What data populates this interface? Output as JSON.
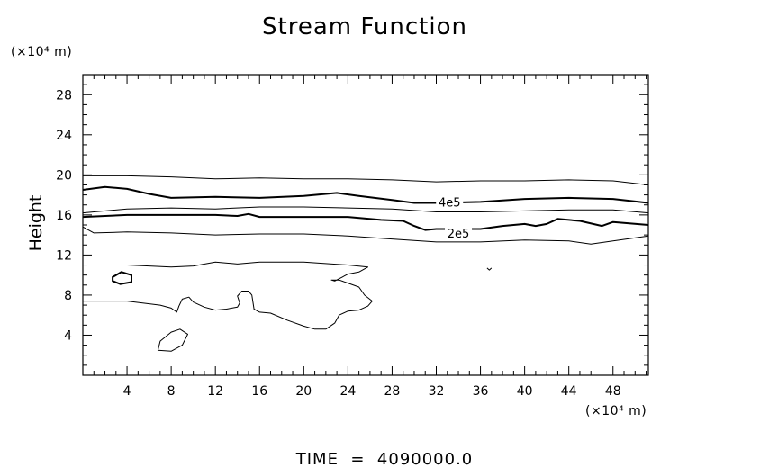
{
  "chart_data": {
    "type": "contour",
    "title": "Stream Function",
    "ylabel": "Height",
    "xlabel": "",
    "y_unit_label": "(×10⁴ m)",
    "x_unit_label": "(×10⁴ m)",
    "footer": "TIME  =  4090000.0",
    "xlim": [
      0,
      51.2
    ],
    "ylim": [
      0,
      30
    ],
    "x_major_ticks": [
      4,
      8,
      12,
      16,
      20,
      24,
      28,
      32,
      36,
      40,
      44,
      48
    ],
    "x_tick_labels": [
      "4",
      "8",
      "12",
      "16",
      "20",
      "24",
      "28",
      "32",
      "36",
      "40",
      "44",
      "48"
    ],
    "y_major_ticks": [
      4,
      8,
      12,
      16,
      20,
      24,
      28
    ],
    "y_tick_labels": [
      "4",
      "8",
      "12",
      "16",
      "20",
      "24",
      "28"
    ],
    "minor_tick_step": 1,
    "contour_labels": [
      {
        "text": "4e5",
        "x": 33.2,
        "y": 17.3
      },
      {
        "text": "2e5",
        "x": 34.0,
        "y": 14.2
      }
    ],
    "contours": [
      {
        "bold": false,
        "points": [
          [
            0,
            19.9
          ],
          [
            4,
            19.9
          ],
          [
            8,
            19.8
          ],
          [
            12,
            19.6
          ],
          [
            16,
            19.7
          ],
          [
            20,
            19.6
          ],
          [
            24,
            19.6
          ],
          [
            28,
            19.5
          ],
          [
            32,
            19.3
          ],
          [
            36,
            19.4
          ],
          [
            40,
            19.4
          ],
          [
            44,
            19.5
          ],
          [
            48,
            19.4
          ],
          [
            51.2,
            19.0
          ]
        ]
      },
      {
        "bold": true,
        "points": [
          [
            0,
            18.5
          ],
          [
            2,
            18.8
          ],
          [
            4,
            18.6
          ],
          [
            6,
            18.1
          ],
          [
            8,
            17.7
          ],
          [
            12,
            17.8
          ],
          [
            16,
            17.7
          ],
          [
            20,
            17.9
          ],
          [
            23,
            18.2
          ],
          [
            25,
            17.9
          ],
          [
            28,
            17.5
          ],
          [
            30,
            17.2
          ],
          [
            32,
            17.2
          ],
          [
            36,
            17.3
          ],
          [
            40,
            17.6
          ],
          [
            44,
            17.7
          ],
          [
            48,
            17.6
          ],
          [
            51.2,
            17.2
          ]
        ]
      },
      {
        "bold": false,
        "points": [
          [
            0,
            16.2
          ],
          [
            4,
            16.6
          ],
          [
            8,
            16.7
          ],
          [
            12,
            16.6
          ],
          [
            16,
            16.8
          ],
          [
            20,
            16.8
          ],
          [
            24,
            16.7
          ],
          [
            28,
            16.6
          ],
          [
            32,
            16.3
          ],
          [
            36,
            16.3
          ],
          [
            40,
            16.4
          ],
          [
            44,
            16.5
          ],
          [
            48,
            16.5
          ],
          [
            51.2,
            16.2
          ]
        ]
      },
      {
        "bold": true,
        "points": [
          [
            0,
            15.8
          ],
          [
            4,
            16.0
          ],
          [
            8,
            16.0
          ],
          [
            12,
            16.0
          ],
          [
            14,
            15.9
          ],
          [
            15,
            16.1
          ],
          [
            16,
            15.8
          ],
          [
            20,
            15.8
          ],
          [
            24,
            15.8
          ],
          [
            27,
            15.5
          ],
          [
            29,
            15.4
          ],
          [
            30,
            14.9
          ],
          [
            31,
            14.5
          ],
          [
            32,
            14.6
          ],
          [
            36,
            14.6
          ],
          [
            38,
            14.9
          ],
          [
            40,
            15.1
          ],
          [
            41,
            14.9
          ],
          [
            42,
            15.1
          ],
          [
            43,
            15.6
          ],
          [
            45,
            15.4
          ],
          [
            47,
            14.9
          ],
          [
            48,
            15.3
          ],
          [
            51.2,
            15.0
          ]
        ]
      },
      {
        "bold": false,
        "points": [
          [
            0,
            14.8
          ],
          [
            1,
            14.2
          ],
          [
            4,
            14.3
          ],
          [
            8,
            14.2
          ],
          [
            12,
            14.0
          ],
          [
            16,
            14.1
          ],
          [
            20,
            14.1
          ],
          [
            24,
            13.9
          ],
          [
            28,
            13.6
          ],
          [
            32,
            13.3
          ],
          [
            36,
            13.3
          ],
          [
            40,
            13.5
          ],
          [
            44,
            13.4
          ],
          [
            46,
            13.1
          ],
          [
            48,
            13.4
          ],
          [
            51.2,
            13.9
          ]
        ]
      },
      {
        "bold": false,
        "points": [
          [
            0,
            11.0
          ],
          [
            4,
            11.0
          ],
          [
            8,
            10.8
          ],
          [
            10,
            10.9
          ],
          [
            12,
            11.3
          ],
          [
            14,
            11.1
          ],
          [
            16,
            11.3
          ],
          [
            20,
            11.3
          ],
          [
            24,
            11.0
          ],
          [
            25.8,
            10.8
          ],
          [
            25,
            10.3
          ],
          [
            24,
            10.1
          ],
          [
            23.5,
            9.8
          ],
          [
            22.8,
            9.4
          ],
          [
            22.5,
            9.5
          ],
          [
            23.2,
            9.5
          ],
          [
            24,
            9.2
          ],
          [
            25,
            8.8
          ],
          [
            25.5,
            8.0
          ],
          [
            26.2,
            7.4
          ],
          [
            25.8,
            6.9
          ],
          [
            25,
            6.5
          ],
          [
            24,
            6.4
          ],
          [
            23.2,
            6.0
          ],
          [
            22.8,
            5.2
          ],
          [
            22,
            4.6
          ],
          [
            21,
            4.6
          ],
          [
            20,
            4.9
          ],
          [
            18.5,
            5.5
          ],
          [
            17,
            6.2
          ],
          [
            16,
            6.3
          ],
          [
            15.5,
            6.6
          ],
          [
            15.3,
            8.0
          ],
          [
            15,
            8.4
          ],
          [
            14.4,
            8.4
          ],
          [
            14,
            7.9
          ],
          [
            14.2,
            7.2
          ],
          [
            14,
            6.8
          ],
          [
            13,
            6.6
          ],
          [
            12,
            6.5
          ],
          [
            11,
            6.8
          ],
          [
            10,
            7.3
          ],
          [
            9.6,
            7.8
          ],
          [
            9,
            7.6
          ],
          [
            8.7,
            6.9
          ],
          [
            8.5,
            6.3
          ],
          [
            8,
            6.7
          ],
          [
            7,
            7.0
          ],
          [
            4,
            7.4
          ],
          [
            0,
            7.4
          ]
        ]
      },
      {
        "bold": true,
        "closed": true,
        "points": [
          [
            2.7,
            9.8
          ],
          [
            3.5,
            10.3
          ],
          [
            4.4,
            10.0
          ],
          [
            4.4,
            9.3
          ],
          [
            3.4,
            9.1
          ],
          [
            2.7,
            9.4
          ],
          [
            2.7,
            9.8
          ]
        ]
      },
      {
        "bold": false,
        "closed": true,
        "points": [
          [
            6.8,
            2.5
          ],
          [
            7.0,
            3.4
          ],
          [
            8.0,
            4.3
          ],
          [
            8.8,
            4.6
          ],
          [
            9.5,
            4.1
          ],
          [
            9.0,
            3.0
          ],
          [
            8.0,
            2.4
          ],
          [
            6.8,
            2.5
          ]
        ]
      },
      {
        "bold": false,
        "points": [
          [
            36.6,
            10.7
          ],
          [
            36.8,
            10.5
          ],
          [
            37.0,
            10.7
          ]
        ]
      }
    ]
  }
}
